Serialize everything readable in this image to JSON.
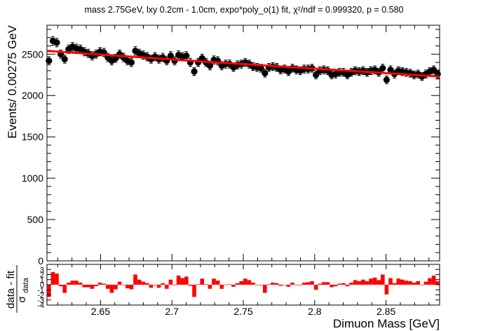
{
  "chart_data": [
    {
      "type": "scatter",
      "title": "mass 2.75GeV, lxy 0.2cm - 1.0cm, expo*poly_o(1) fit, χ²/ndf = 0.999320, p = 0.580",
      "ylabel": "Events/ 0.00275 GeV",
      "xlim": [
        2.6125,
        2.8875
      ],
      "ylim": [
        0,
        2850
      ],
      "x_ticks": [
        "2.65",
        "2.7",
        "2.75",
        "2.8",
        "2.85"
      ],
      "y_ticks": [
        "0",
        "500",
        "1000",
        "1500",
        "2000",
        "2500"
      ],
      "series": [
        {
          "kind": "data_points_with_errors",
          "color": "#000000",
          "x": [
            2.61388,
            2.61663,
            2.61938,
            2.62213,
            2.62488,
            2.62763,
            2.63038,
            2.63313,
            2.63588,
            2.63863,
            2.64138,
            2.64413,
            2.64688,
            2.64963,
            2.65238,
            2.65513,
            2.65788,
            2.66063,
            2.66338,
            2.66613,
            2.66888,
            2.67163,
            2.67438,
            2.67713,
            2.67988,
            2.68263,
            2.68538,
            2.68813,
            2.69088,
            2.69363,
            2.69638,
            2.69913,
            2.70188,
            2.70463,
            2.70738,
            2.71013,
            2.71288,
            2.71563,
            2.71838,
            2.72113,
            2.72388,
            2.72663,
            2.72938,
            2.73213,
            2.73488,
            2.73763,
            2.74038,
            2.74313,
            2.74588,
            2.74863,
            2.75138,
            2.75413,
            2.75688,
            2.75963,
            2.76238,
            2.76513,
            2.76788,
            2.77063,
            2.77338,
            2.77613,
            2.77888,
            2.78163,
            2.78438,
            2.78713,
            2.78988,
            2.79263,
            2.79538,
            2.79813,
            2.80088,
            2.80363,
            2.80638,
            2.80913,
            2.81188,
            2.81463,
            2.81738,
            2.82013,
            2.82288,
            2.82563,
            2.82838,
            2.83113,
            2.83388,
            2.83663,
            2.83938,
            2.84213,
            2.84488,
            2.84763,
            2.85038,
            2.85313,
            2.85588,
            2.85863,
            2.86138,
            2.86413,
            2.86688,
            2.86963,
            2.87238,
            2.87513,
            2.87788,
            2.88063,
            2.88338,
            2.88613
          ],
          "y": [
            2420,
            2660,
            2640,
            2500,
            2440,
            2560,
            2590,
            2570,
            2560,
            2530,
            2510,
            2480,
            2500,
            2530,
            2520,
            2460,
            2420,
            2450,
            2500,
            2460,
            2420,
            2400,
            2540,
            2510,
            2490,
            2470,
            2440,
            2470,
            2440,
            2460,
            2420,
            2480,
            2420,
            2490,
            2470,
            2480,
            2400,
            2290,
            2400,
            2450,
            2400,
            2360,
            2430,
            2420,
            2360,
            2380,
            2380,
            2340,
            2370,
            2380,
            2400,
            2380,
            2350,
            2340,
            2330,
            2270,
            2340,
            2350,
            2340,
            2310,
            2320,
            2290,
            2330,
            2310,
            2300,
            2320,
            2320,
            2330,
            2250,
            2300,
            2310,
            2300,
            2250,
            2260,
            2280,
            2280,
            2250,
            2280,
            2300,
            2290,
            2300,
            2280,
            2300,
            2310,
            2280,
            2330,
            2190,
            2310,
            2260,
            2300,
            2290,
            2280,
            2270,
            2250,
            2260,
            2230,
            2260,
            2290,
            2310,
            2260
          ],
          "yerr": [
            49,
            52,
            51,
            50,
            49,
            51,
            51,
            51,
            51,
            50,
            50,
            50,
            50,
            50,
            50,
            50,
            49,
            49,
            50,
            50,
            49,
            49,
            50,
            50,
            50,
            50,
            49,
            50,
            49,
            50,
            49,
            50,
            49,
            50,
            50,
            50,
            49,
            48,
            49,
            49,
            49,
            49,
            49,
            49,
            49,
            49,
            49,
            48,
            49,
            49,
            49,
            49,
            48,
            48,
            48,
            48,
            48,
            48,
            48,
            48,
            48,
            48,
            48,
            48,
            48,
            48,
            48,
            48,
            47,
            48,
            48,
            48,
            47,
            48,
            48,
            48,
            47,
            48,
            48,
            48,
            48,
            48,
            48,
            48,
            48,
            48,
            47,
            48,
            48,
            48,
            48,
            48,
            48,
            47,
            48,
            47,
            48,
            48,
            48,
            48
          ]
        },
        {
          "kind": "fit_curve",
          "color": "#ff0000",
          "x": [
            2.6125,
            2.6675,
            2.7225,
            2.7775,
            2.8325,
            2.8875
          ],
          "y": [
            2540,
            2475,
            2410,
            2350,
            2290,
            2230
          ]
        }
      ]
    },
    {
      "type": "bar",
      "xlabel": "Dimuon Mass [GeV]",
      "ylabel": "data - fit",
      "ylabel_denominator": "σ",
      "ylabel_subscript": "data",
      "xlim": [
        2.6125,
        2.8875
      ],
      "ylim": [
        -4,
        4
      ],
      "x_ticks": [
        "2.65",
        "2.7",
        "2.75",
        "2.8",
        "2.85"
      ],
      "y_ticks": [
        "3",
        "2",
        "1",
        "0",
        "-1",
        "-2",
        "-3",
        "-4"
      ],
      "color": "#ff0000",
      "values": [
        -2.4,
        2.5,
        2.2,
        -0.3,
        -1.6,
        0.4,
        0.8,
        0.8,
        0.4,
        -0.5,
        -0.5,
        -0.8,
        -0.3,
        0.4,
        0.2,
        -0.8,
        -1.6,
        -0.9,
        0.6,
        0.0,
        -0.7,
        -0.9,
        2.0,
        1.0,
        0.6,
        0.3,
        -0.6,
        -0.1,
        -0.6,
        0.3,
        -0.8,
        1.0,
        -0.1,
        1.8,
        1.3,
        1.6,
        -0.2,
        -2.4,
        0.1,
        1.2,
        0.1,
        -0.8,
        1.2,
        0.8,
        -0.8,
        0.0,
        0.1,
        -0.4,
        0.3,
        0.7,
        1.2,
        0.9,
        0.4,
        0.0,
        -0.1,
        -1.6,
        0.1,
        0.4,
        0.3,
        -0.2,
        0.0,
        -0.4,
        0.4,
        0.0,
        -0.1,
        0.4,
        0.5,
        0.7,
        -1.0,
        0.2,
        0.5,
        0.5,
        -0.5,
        -0.3,
        0.2,
        0.3,
        -0.3,
        0.4,
        0.9,
        0.7,
        1.0,
        0.7,
        1.2,
        1.4,
        0.9,
        2.0,
        -1.9,
        1.3,
        0.3,
        1.2,
        1.0,
        0.8,
        0.7,
        0.4,
        0.7,
        0.0,
        0.6,
        1.3,
        1.8,
        0.7
      ]
    }
  ]
}
